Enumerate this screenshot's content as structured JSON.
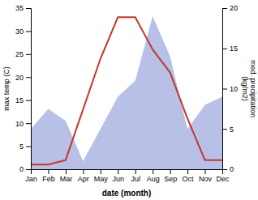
{
  "chart_data": {
    "type": "line",
    "categories": [
      "Jan",
      "Feb",
      "Mar",
      "Apr",
      "May",
      "Jun",
      "Jul",
      "Aug",
      "Sep",
      "Oct",
      "Nov",
      "Dec"
    ],
    "series": [
      {
        "type": "area",
        "axis": "y2",
        "color": "#b8c0e8",
        "values": [
          5,
          7.5,
          6,
          1,
          5,
          9,
          11,
          19,
          14,
          5,
          8,
          9
        ]
      },
      {
        "type": "line",
        "color": "#c0392b",
        "values": [
          1,
          1,
          2,
          13,
          24,
          33,
          33,
          26,
          21,
          11,
          2,
          2
        ]
      }
    ],
    "xlabel": "date (month)",
    "ylabel": "max temp (C)",
    "y2label": "med. precipitation\n(kg/m2)",
    "ylim": [
      0,
      35
    ],
    "yticks": [
      0,
      5,
      10,
      15,
      20,
      25,
      30,
      35
    ],
    "y2lim": [
      0,
      20
    ],
    "y2ticks": [
      0,
      5,
      10,
      15,
      20
    ],
    "grid": false
  }
}
